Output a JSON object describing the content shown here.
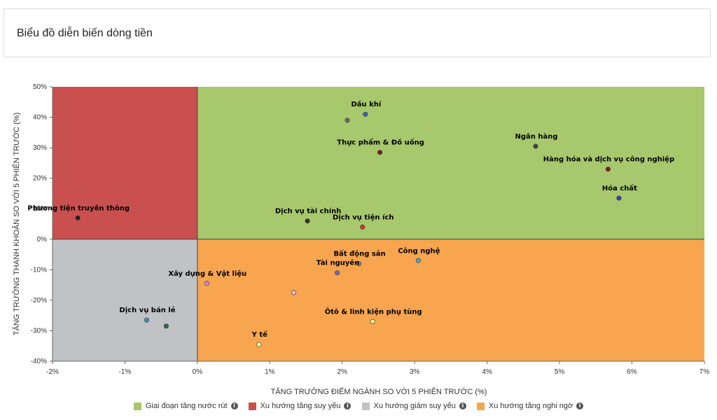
{
  "header": {
    "title": "Biểu đồ diễn biến dòng tiền"
  },
  "chart_data": {
    "type": "scatter",
    "title": "",
    "xlabel": "TĂNG TRƯỞNG ĐIỂM NGÀNH SO VỚI 5 PHIÊN TRƯỚC (%)",
    "ylabel": "TĂNG TRƯỞNG THANH KHOẢN SO VỚI 5 PHIÊN TRƯỚC (%)",
    "xlim": [
      -2,
      7
    ],
    "ylim": [
      -40,
      50
    ],
    "x_ticks": [
      -2,
      -1,
      0,
      1,
      2,
      3,
      4,
      5,
      6,
      7
    ],
    "x_tick_labels": [
      "-2%",
      "-1%",
      "0%",
      "1%",
      "2%",
      "3%",
      "4%",
      "5%",
      "6%",
      "7%"
    ],
    "y_ticks": [
      -40,
      -30,
      -20,
      -10,
      0,
      10,
      20,
      30,
      40,
      50
    ],
    "y_tick_labels": [
      "-40%",
      "-30%",
      "-20%",
      "-10%",
      "0%",
      "10%",
      "20%",
      "30%",
      "40%",
      "50%"
    ],
    "quadrant_colors": {
      "top_left": "#c9504f",
      "top_right": "#a7c86c",
      "bottom_left": "#c1c2c6",
      "bottom_right": "#f8a54f"
    },
    "points": [
      {
        "label": "Dầu khí",
        "x": 2.32,
        "y": 41,
        "color": "#3d5fc4"
      },
      {
        "label": "",
        "x": 2.07,
        "y": 39,
        "color": "#6b6b6b"
      },
      {
        "label": "Thực phẩm & Đồ uống",
        "x": 2.52,
        "y": 28.5,
        "color": "#7a1f2d"
      },
      {
        "label": "Ngân hàng",
        "x": 4.67,
        "y": 30.5,
        "color": "#444444"
      },
      {
        "label": "Hàng hóa và dịch vụ công nghiệp",
        "x": 5.67,
        "y": 23,
        "color": "#8b1a2a"
      },
      {
        "label": "Hóa chất",
        "x": 5.82,
        "y": 13.5,
        "color": "#3344aa"
      },
      {
        "label": "Dịch vụ tài chính",
        "x": 1.52,
        "y": 6,
        "color": "#333333"
      },
      {
        "label": "Dịch vụ tiện ích",
        "x": 2.28,
        "y": 4,
        "color": "#e0312f"
      },
      {
        "label": "Phương tiện truyền thông",
        "x": -1.65,
        "y": 7,
        "color": "#222222"
      },
      {
        "label": "Bất động sản",
        "x": 2.23,
        "y": -8,
        "color": "#8a8a8a"
      },
      {
        "label": "Công nghệ",
        "x": 3.05,
        "y": -7,
        "color": "#3fa9e0"
      },
      {
        "label": "Tài nguyên",
        "x": 1.93,
        "y": -11,
        "color": "#6a6ac8"
      },
      {
        "label": "Xây dựng & Vật liệu",
        "x": 0.13,
        "y": -14.5,
        "color": "#c98ad8"
      },
      {
        "label": "",
        "x": 1.33,
        "y": -17.5,
        "color": "#f2c2c8"
      },
      {
        "label": "Ôtô & linh kiện phụ tùng",
        "x": 2.42,
        "y": -27,
        "color": "#f4f08a"
      },
      {
        "label": "Dịch vụ bán lẻ",
        "x": -0.7,
        "y": -26.5,
        "color": "#3a8fc0"
      },
      {
        "label": "",
        "x": -0.43,
        "y": -28.5,
        "color": "#2f6b3a"
      },
      {
        "label": "Y tế",
        "x": 0.85,
        "y": -34.5,
        "color": "#f6f3b0"
      }
    ],
    "legend": [
      {
        "label": "Giai đoạn tăng nước rút",
        "color": "#a7c86c"
      },
      {
        "label": "Xu hướng tăng suy yếu",
        "color": "#c9504f"
      },
      {
        "label": "Xu hướng giảm suy yếu",
        "color": "#c1c2c6"
      },
      {
        "label": "Xu hướng tăng nghi ngờ",
        "color": "#f8a54f"
      }
    ],
    "legend_position": "bottom",
    "grid": false
  }
}
